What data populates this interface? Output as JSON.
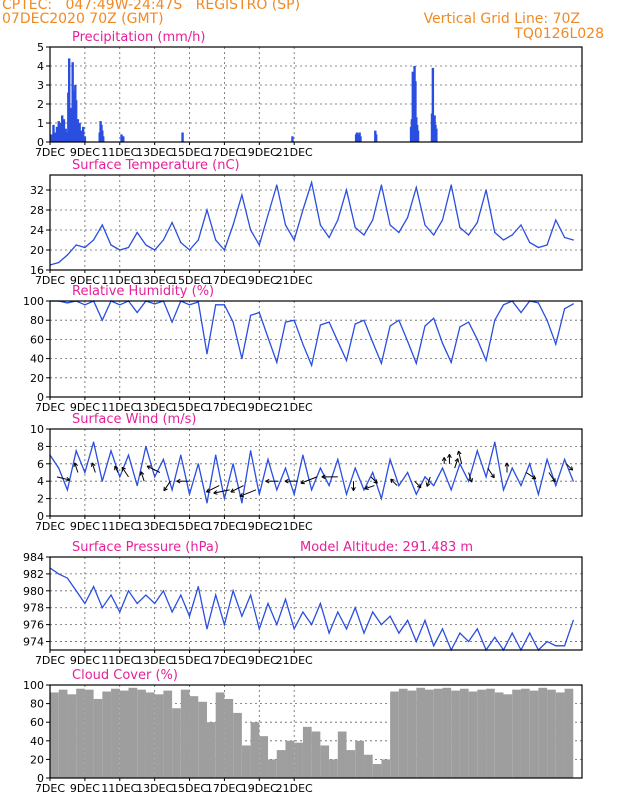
{
  "header": {
    "line1": "CPTEC:   047:49W-24:47S   REGISTRO (SP)",
    "line2": "07DEC2020 70Z (GMT)",
    "grid_note": "Vertical Grid Line: 70Z",
    "run_id": "TQ0126L028"
  },
  "colors": {
    "orange": "#f08a24",
    "magenta": "#e8209a",
    "line": "#2a4ee0",
    "bar": "#2a4ee0",
    "cloud": "#9e9e9e"
  },
  "x_ticks": [
    "7DEC",
    "9DEC",
    "11DEC",
    "13DEC",
    "15DEC",
    "17DEC",
    "19DEC",
    "21DEC"
  ],
  "chart_data": [
    {
      "id": "precip",
      "type": "bar",
      "title": "Precipitation (mm/h)",
      "ylim": [
        0,
        5
      ],
      "yticks": [
        "0",
        "1",
        "2",
        "3",
        "4",
        "5"
      ],
      "x_days": [
        0.1,
        0.2,
        0.3,
        0.4,
        0.5,
        0.6,
        0.7,
        0.8,
        0.9,
        1.0,
        1.05,
        1.1,
        1.2,
        1.3,
        1.35,
        1.4,
        1.45,
        1.5,
        1.6,
        1.7,
        1.8,
        1.9,
        2.0,
        2.85,
        2.9,
        2.95,
        3.0,
        3.05,
        4.1,
        4.2,
        7.6,
        13.9,
        17.55,
        17.6,
        17.7,
        17.75,
        17.8,
        18.65,
        18.7,
        20.7,
        20.75,
        20.8,
        20.9,
        20.95,
        21.0,
        21.05,
        21.1,
        21.9,
        21.95,
        22.0,
        22.05,
        22.1,
        22.15
      ],
      "values": [
        0.4,
        0.9,
        0.5,
        0.8,
        1.1,
        1.0,
        1.4,
        1.2,
        0.7,
        0.5,
        2.6,
        4.4,
        1.8,
        4.2,
        2.1,
        2.7,
        3.0,
        2.2,
        1.2,
        1.0,
        0.6,
        0.8,
        0.3,
        0.5,
        1.1,
        0.9,
        0.6,
        0.3,
        0.4,
        0.3,
        0.5,
        0.3,
        0.4,
        0.5,
        0.4,
        0.5,
        0.3,
        0.6,
        0.4,
        0.8,
        1.2,
        3.7,
        4.0,
        3.2,
        1.3,
        0.9,
        0.6,
        1.5,
        3.9,
        1.1,
        1.4,
        0.9,
        0.7
      ]
    },
    {
      "id": "temp",
      "type": "line",
      "title": "Surface Temperature (nC)",
      "ylim": [
        16,
        35
      ],
      "yticks": [
        "16",
        "20",
        "24",
        "28",
        "32"
      ],
      "ytick_vals": [
        16,
        20,
        24,
        28,
        32
      ],
      "x_days": [
        0.0,
        0.5,
        1.0,
        1.5,
        2.0,
        2.5,
        3.0,
        3.5,
        4.0,
        4.5,
        5.0,
        5.5,
        6.0,
        6.5,
        7.0,
        7.5,
        8.0,
        8.5,
        9.0,
        9.5,
        10.0,
        10.5,
        11.0,
        11.5,
        12.0,
        12.5,
        13.0,
        13.5,
        14.0,
        14.5,
        15.0,
        15.5,
        16.0,
        16.5,
        17.0,
        17.5,
        18.0,
        18.5,
        19.0,
        19.5,
        20.0,
        20.5,
        21.0,
        21.5,
        22.0,
        22.5,
        23.0,
        23.5,
        24.0,
        24.5,
        25.0,
        25.5,
        26.0,
        26.5,
        27.0,
        27.5,
        28.0,
        28.5,
        29.0,
        29.5,
        30.0
      ],
      "values": [
        17.0,
        17.5,
        19.0,
        21.0,
        20.5,
        22.0,
        25.0,
        21.0,
        20.0,
        20.5,
        23.5,
        21.0,
        20.0,
        22.0,
        25.5,
        21.5,
        20.0,
        22.0,
        28.0,
        22.0,
        20.0,
        25.0,
        31.0,
        24.0,
        21.0,
        27.0,
        33.0,
        25.0,
        22.0,
        28.0,
        33.5,
        25.0,
        22.5,
        26.0,
        32.0,
        24.5,
        23.0,
        26.0,
        33.0,
        25.0,
        23.5,
        26.5,
        32.5,
        25.0,
        23.0,
        26.0,
        33.0,
        24.5,
        23.0,
        25.5,
        32.0,
        23.5,
        22.0,
        23.0,
        25.0,
        21.5,
        20.5,
        21.0,
        26.0,
        22.5,
        22.0
      ]
    },
    {
      "id": "rh",
      "type": "line",
      "title": "Relative Humidity (%)",
      "ylim": [
        0,
        100
      ],
      "yticks": [
        "0",
        "20",
        "40",
        "60",
        "80",
        "100"
      ],
      "ytick_vals": [
        0,
        20,
        40,
        60,
        80,
        100
      ],
      "x_days": [
        0.0,
        0.5,
        1.0,
        1.5,
        2.0,
        2.5,
        3.0,
        3.5,
        4.0,
        4.5,
        5.0,
        5.5,
        6.0,
        6.5,
        7.0,
        7.5,
        8.0,
        8.5,
        9.0,
        9.5,
        10.0,
        10.5,
        11.0,
        11.5,
        12.0,
        12.5,
        13.0,
        13.5,
        14.0,
        14.5,
        15.0,
        15.5,
        16.0,
        16.5,
        17.0,
        17.5,
        18.0,
        18.5,
        19.0,
        19.5,
        20.0,
        20.5,
        21.0,
        21.5,
        22.0,
        22.5,
        23.0,
        23.5,
        24.0,
        24.5,
        25.0,
        25.5,
        26.0,
        26.5,
        27.0,
        27.5,
        28.0,
        28.5,
        29.0,
        29.5,
        30.0
      ],
      "values": [
        100,
        100,
        98,
        100,
        96,
        100,
        80,
        100,
        96,
        100,
        88,
        100,
        97,
        100,
        78,
        100,
        96,
        99,
        45,
        96,
        96,
        78,
        40,
        85,
        88,
        62,
        36,
        78,
        80,
        55,
        33,
        75,
        78,
        58,
        38,
        76,
        80,
        57,
        35,
        74,
        80,
        58,
        35,
        74,
        82,
        56,
        36,
        73,
        78,
        60,
        38,
        80,
        96,
        100,
        88,
        100,
        98,
        80,
        55,
        92,
        97
      ]
    },
    {
      "id": "wind",
      "type": "line",
      "title": "Surface Wind (m/s)",
      "ylim": [
        0,
        10
      ],
      "yticks": [
        "0",
        "2",
        "4",
        "6",
        "8",
        "10"
      ],
      "ytick_vals": [
        0,
        2,
        4,
        6,
        8,
        10
      ],
      "x_days": [
        0.0,
        0.5,
        1.0,
        1.5,
        2.0,
        2.5,
        3.0,
        3.5,
        4.0,
        4.5,
        5.0,
        5.5,
        6.0,
        6.5,
        7.0,
        7.5,
        8.0,
        8.5,
        9.0,
        9.5,
        10.0,
        10.5,
        11.0,
        11.5,
        12.0,
        12.5,
        13.0,
        13.5,
        14.0,
        14.5,
        15.0,
        15.5,
        16.0,
        16.5,
        17.0,
        17.5,
        18.0,
        18.5,
        19.0,
        19.5,
        20.0,
        20.5,
        21.0,
        21.5,
        22.0,
        22.5,
        23.0,
        23.5,
        24.0,
        24.5,
        25.0,
        25.5,
        26.0,
        26.5,
        27.0,
        27.5,
        28.0,
        28.5,
        29.0,
        29.5,
        30.0
      ],
      "values": [
        7.0,
        5.5,
        3.0,
        7.5,
        5.0,
        8.5,
        4.0,
        7.5,
        4.5,
        7.0,
        3.5,
        8.0,
        4.5,
        6.5,
        3.0,
        7.0,
        2.5,
        6.0,
        1.5,
        7.0,
        2.0,
        6.0,
        1.5,
        7.5,
        2.5,
        6.5,
        3.0,
        5.5,
        2.5,
        7.0,
        3.0,
        5.5,
        3.5,
        6.5,
        2.5,
        5.5,
        3.0,
        5.0,
        2.0,
        6.5,
        3.5,
        5.0,
        2.5,
        4.5,
        3.5,
        5.5,
        3.0,
        6.0,
        4.0,
        7.5,
        4.5,
        8.5,
        3.0,
        5.5,
        3.5,
        6.0,
        2.5,
        6.5,
        3.5,
        6.5,
        4.0
      ],
      "vectors": [
        {
          "day": 0.4,
          "y": 4.5,
          "u": 4,
          "v": -1
        },
        {
          "day": 1.6,
          "y": 5.0,
          "u": -1,
          "v": 3
        },
        {
          "day": 2.6,
          "y": 5.0,
          "u": -1,
          "v": 3
        },
        {
          "day": 3.9,
          "y": 5.0,
          "u": -1,
          "v": 2
        },
        {
          "day": 4.5,
          "y": 4.5,
          "u": -2,
          "v": 3
        },
        {
          "day": 5.4,
          "y": 4.0,
          "u": -1,
          "v": 3
        },
        {
          "day": 6.3,
          "y": 5.0,
          "u": -4,
          "v": 2
        },
        {
          "day": 6.9,
          "y": 4.0,
          "u": -2,
          "v": -3
        },
        {
          "day": 8.0,
          "y": 4.0,
          "u": -4,
          "v": 0
        },
        {
          "day": 9.7,
          "y": 3.5,
          "u": -4,
          "v": -2
        },
        {
          "day": 10.3,
          "y": 3.0,
          "u": -5,
          "v": -1
        },
        {
          "day": 11.1,
          "y": 3.5,
          "u": -4,
          "v": -2
        },
        {
          "day": 11.8,
          "y": 3.0,
          "u": -5,
          "v": -2
        },
        {
          "day": 13.1,
          "y": 4.0,
          "u": -4,
          "v": 0
        },
        {
          "day": 14.2,
          "y": 4.0,
          "u": -4,
          "v": 0
        },
        {
          "day": 15.3,
          "y": 4.5,
          "u": -5,
          "v": -2
        },
        {
          "day": 16.5,
          "y": 4.5,
          "u": -5,
          "v": 0
        },
        {
          "day": 17.4,
          "y": 4.0,
          "u": 0,
          "v": -3
        },
        {
          "day": 18.4,
          "y": 4.5,
          "u": 2,
          "v": -2
        },
        {
          "day": 18.6,
          "y": 3.5,
          "u": -3,
          "v": -1
        },
        {
          "day": 19.9,
          "y": 3.5,
          "u": -2,
          "v": 2
        },
        {
          "day": 20.9,
          "y": 4.0,
          "u": 2,
          "v": -2
        },
        {
          "day": 21.8,
          "y": 4.5,
          "u": -1,
          "v": -3
        },
        {
          "day": 22.6,
          "y": 6.0,
          "u": 0,
          "v": 2
        },
        {
          "day": 22.9,
          "y": 6.0,
          "u": 0,
          "v": 3
        },
        {
          "day": 23.2,
          "y": 5.5,
          "u": 1,
          "v": 3
        },
        {
          "day": 23.6,
          "y": 6.0,
          "u": -1,
          "v": 4
        },
        {
          "day": 24.0,
          "y": 5.0,
          "u": 1,
          "v": -3
        },
        {
          "day": 25.1,
          "y": 5.5,
          "u": 2,
          "v": -3
        },
        {
          "day": 26.2,
          "y": 5.0,
          "u": 0,
          "v": 3
        },
        {
          "day": 27.3,
          "y": 5.0,
          "u": 3,
          "v": -2
        },
        {
          "day": 28.6,
          "y": 5.0,
          "u": 2,
          "v": -3
        },
        {
          "day": 29.6,
          "y": 6.0,
          "u": 2,
          "v": -2
        }
      ]
    },
    {
      "id": "pres",
      "type": "line",
      "title": "Surface Pressure (hPa)",
      "extra": "Model Altitude: 291.483 m",
      "ylim": [
        973,
        984
      ],
      "yticks": [
        "974",
        "976",
        "978",
        "980",
        "982",
        "984"
      ],
      "ytick_vals": [
        974,
        976,
        978,
        980,
        982,
        984
      ],
      "x_days": [
        0.0,
        0.5,
        1.0,
        1.5,
        2.0,
        2.5,
        3.0,
        3.5,
        4.0,
        4.5,
        5.0,
        5.5,
        6.0,
        6.5,
        7.0,
        7.5,
        8.0,
        8.5,
        9.0,
        9.5,
        10.0,
        10.5,
        11.0,
        11.5,
        12.0,
        12.5,
        13.0,
        13.5,
        14.0,
        14.5,
        15.0,
        15.5,
        16.0,
        16.5,
        17.0,
        17.5,
        18.0,
        18.5,
        19.0,
        19.5,
        20.0,
        20.5,
        21.0,
        21.5,
        22.0,
        22.5,
        23.0,
        23.5,
        24.0,
        24.5,
        25.0,
        25.5,
        26.0,
        26.5,
        27.0,
        27.5,
        28.0,
        28.5,
        29.0,
        29.5,
        30.0
      ],
      "values": [
        982.7,
        982.0,
        981.5,
        980.0,
        978.5,
        980.5,
        978.0,
        979.5,
        977.5,
        980.0,
        978.5,
        979.5,
        978.5,
        980.0,
        977.5,
        979.5,
        977.0,
        980.5,
        975.5,
        979.5,
        976.0,
        980.0,
        977.0,
        979.5,
        975.5,
        978.5,
        976.0,
        979.0,
        975.5,
        977.5,
        976.0,
        978.5,
        975.0,
        977.5,
        975.5,
        978.0,
        975.0,
        977.5,
        976.0,
        977.0,
        975.0,
        976.5,
        974.0,
        976.5,
        973.5,
        975.5,
        972.5,
        975.0,
        974.0,
        975.5,
        972.5,
        974.5,
        972.5,
        975.0,
        973.0,
        975.0,
        972.5,
        974.0,
        973.5,
        973.5,
        976.5
      ]
    },
    {
      "id": "cloud",
      "type": "bar",
      "title": "Cloud Cover (%)",
      "ylim": [
        0,
        100
      ],
      "yticks": [
        "0",
        "20",
        "40",
        "60",
        "80",
        "100"
      ],
      "ytick_vals": [
        0,
        20,
        40,
        60,
        80,
        100
      ],
      "x_days": [
        0.0,
        0.5,
        1.0,
        1.5,
        2.0,
        2.5,
        3.0,
        3.5,
        4.0,
        4.5,
        5.0,
        5.5,
        6.0,
        6.5,
        7.0,
        7.5,
        8.0,
        8.5,
        9.0,
        9.5,
        10.0,
        10.5,
        11.0,
        11.5,
        12.0,
        12.5,
        13.0,
        13.5,
        14.0,
        14.5,
        15.0,
        15.5,
        16.0,
        16.5,
        17.0,
        17.5,
        18.0,
        18.5,
        19.0,
        19.5,
        20.0,
        20.5,
        21.0,
        21.5,
        22.0,
        22.5,
        23.0,
        23.5,
        24.0,
        24.5,
        25.0,
        25.5,
        26.0,
        26.5,
        27.0,
        27.5,
        28.0,
        28.5,
        29.0,
        29.5
      ],
      "values": [
        92,
        95,
        90,
        96,
        95,
        85,
        93,
        96,
        94,
        97,
        95,
        92,
        90,
        94,
        75,
        95,
        88,
        82,
        60,
        92,
        85,
        70,
        35,
        60,
        45,
        20,
        30,
        40,
        38,
        55,
        50,
        35,
        20,
        50,
        30,
        40,
        25,
        15,
        20,
        93,
        96,
        94,
        97,
        95,
        96,
        97,
        94,
        96,
        93,
        95,
        96,
        92,
        90,
        95,
        96,
        94,
        97,
        95,
        92,
        96
      ]
    }
  ]
}
